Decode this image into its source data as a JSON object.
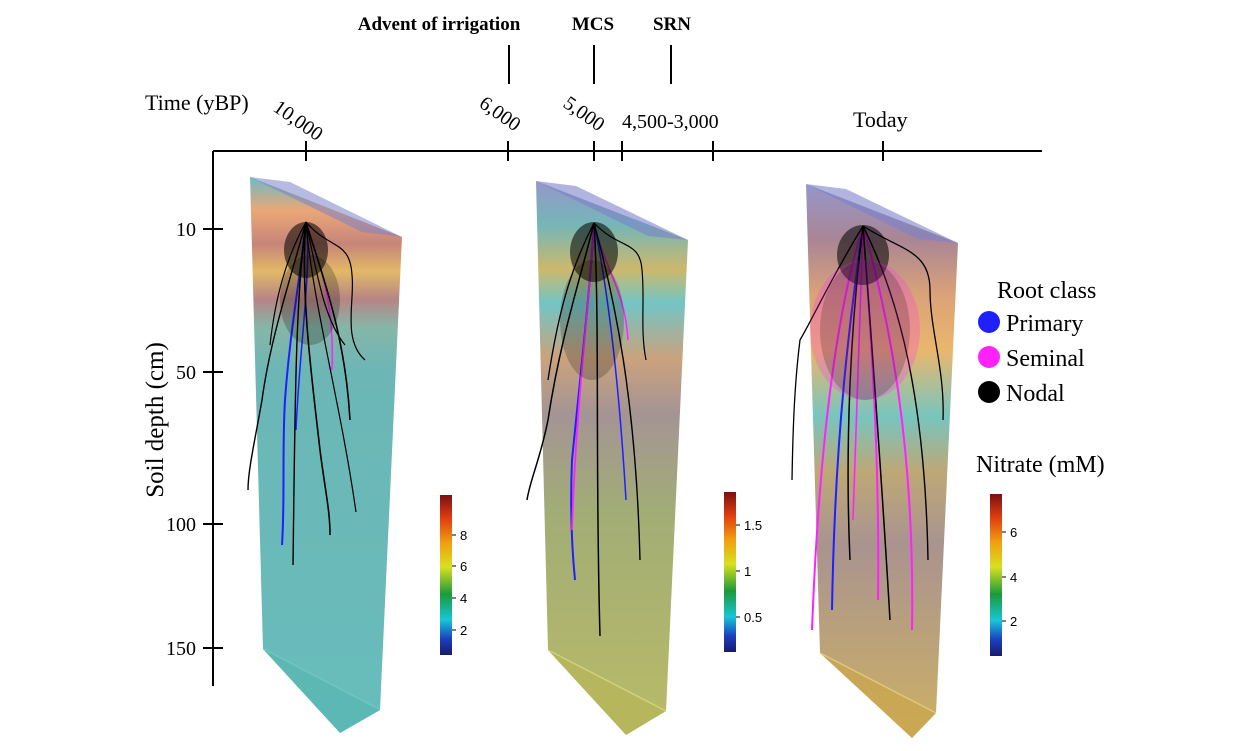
{
  "figure": {
    "time_axis": {
      "title": "Time (yBP)",
      "ticks": [
        "10,000",
        "6,000",
        "5,000",
        "4,500-3,000",
        "Today"
      ],
      "events": [
        {
          "label": "Advent of irrigation"
        },
        {
          "label": "MCS"
        },
        {
          "label": "SRN"
        }
      ]
    },
    "depth_axis": {
      "title": "Soil depth (cm)",
      "ticks": [
        "10",
        "50",
        "100",
        "150"
      ]
    },
    "legend": {
      "title": "Root class",
      "items": [
        {
          "label": "Primary",
          "color": "#1f1fff"
        },
        {
          "label": "Seminal",
          "color": "#ff22ff"
        },
        {
          "label": "Nodal",
          "color": "#000000"
        }
      ]
    },
    "colorbar_title": "Nitrate (mM)",
    "colorbars": [
      {
        "ticks": [
          "8",
          "6",
          "4",
          "2"
        ]
      },
      {
        "ticks": [
          "1.5",
          "1",
          "0.5"
        ]
      },
      {
        "ticks": [
          "6",
          "4",
          "2"
        ]
      }
    ],
    "palette": {
      "primary": "#1f1fff",
      "seminal": "#ff22ff",
      "nodal": "#000000",
      "box_top": "#7c82c8"
    }
  }
}
